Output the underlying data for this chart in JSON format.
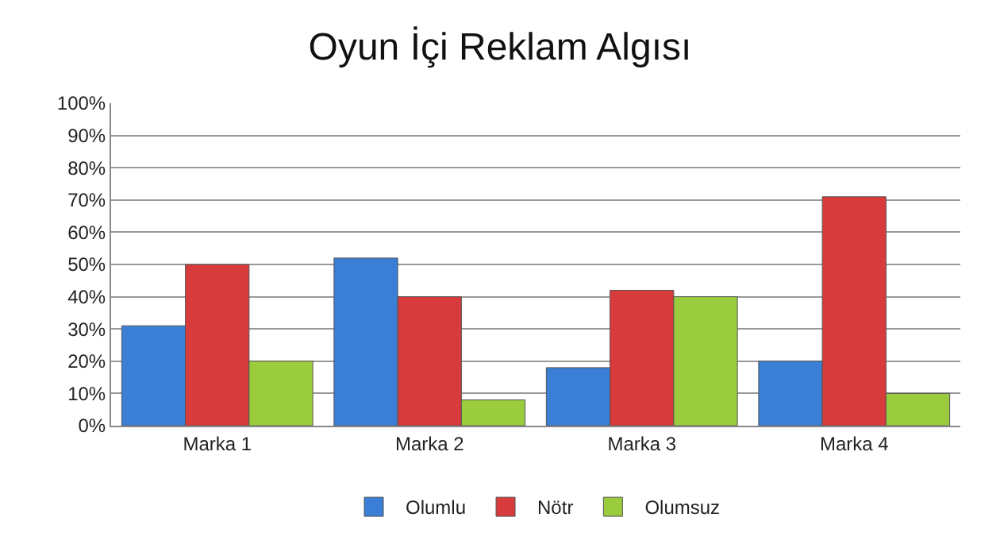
{
  "chart_data": {
    "type": "bar",
    "title": "Oyun İçi Reklam Algısı",
    "categories": [
      "Marka 1",
      "Marka 2",
      "Marka 3",
      "Marka 4"
    ],
    "series": [
      {
        "name": "Olumlu",
        "color": "#3a7fd5",
        "values": [
          31,
          52,
          18,
          20
        ]
      },
      {
        "name": "Nötr",
        "color": "#d83b3b",
        "values": [
          50,
          40,
          42,
          71
        ]
      },
      {
        "name": "Olumsuz",
        "color": "#9bcc3e",
        "values": [
          20,
          8,
          40,
          10
        ]
      }
    ],
    "ylim": [
      0,
      100
    ],
    "yticks": [
      {
        "value": 0,
        "label": "0%"
      },
      {
        "value": 10,
        "label": "10%"
      },
      {
        "value": 20,
        "label": "20%"
      },
      {
        "value": 30,
        "label": "30%"
      },
      {
        "value": 40,
        "label": "40%"
      },
      {
        "value": 50,
        "label": "50%"
      },
      {
        "value": 60,
        "label": "60%"
      },
      {
        "value": 70,
        "label": "70%"
      },
      {
        "value": 80,
        "label": "80%"
      },
      {
        "value": 90,
        "label": "90%"
      },
      {
        "value": 100,
        "label": "100%"
      }
    ],
    "grid": "y",
    "legend": "bottom"
  }
}
